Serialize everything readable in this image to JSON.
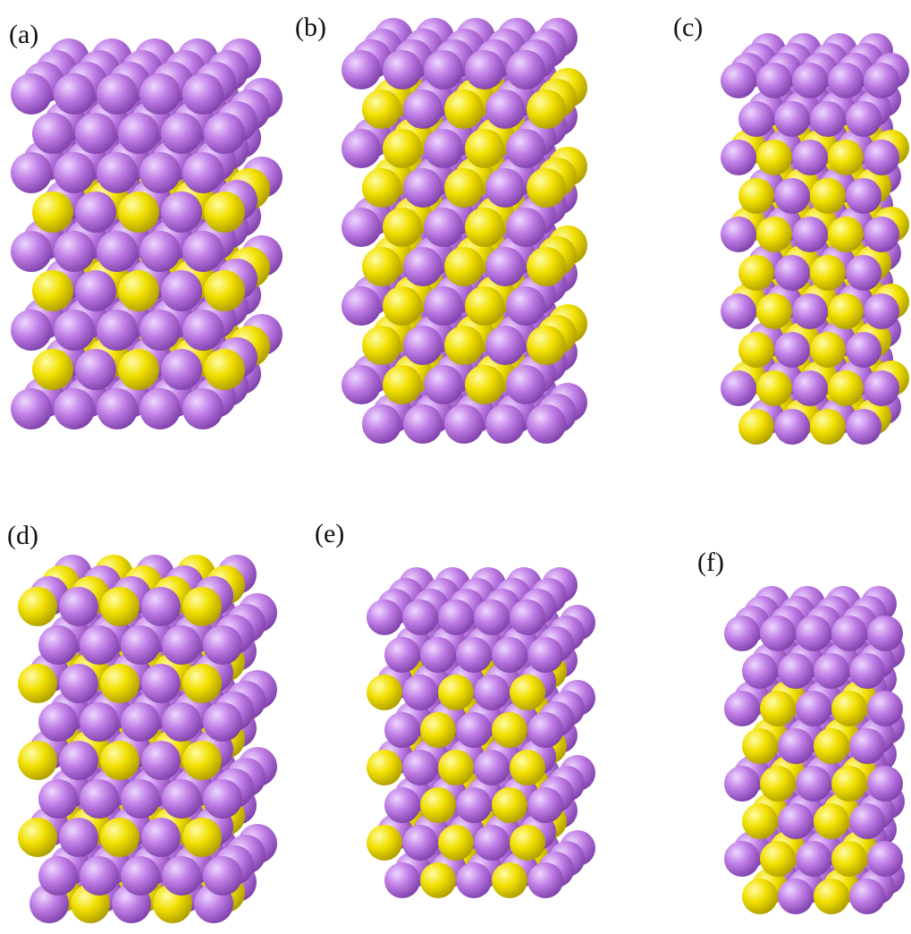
{
  "figure": {
    "colors": {
      "purple": "#c07ee6",
      "purple_dark": "#7a3ca6",
      "purple_light": "#eed8ff",
      "yellow": "#f2e000",
      "yellow_dark": "#a89800",
      "yellow_light": "#fffca8"
    },
    "panels": [
      {
        "label": "(a)",
        "structure": "atomic-cluster-model"
      },
      {
        "label": "(b)",
        "structure": "atomic-cluster-model"
      },
      {
        "label": "(c)",
        "structure": "atomic-cluster-model"
      },
      {
        "label": "(d)",
        "structure": "atomic-cluster-model"
      },
      {
        "label": "(e)",
        "structure": "atomic-cluster-model"
      },
      {
        "label": "(f)",
        "structure": "atomic-cluster-model"
      }
    ]
  }
}
